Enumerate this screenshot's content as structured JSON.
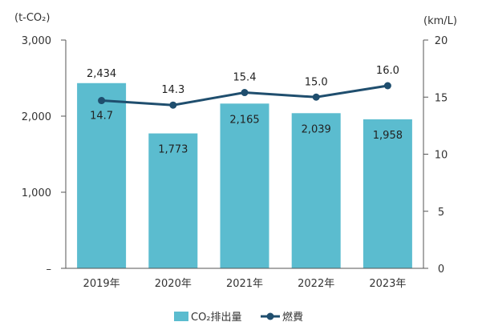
{
  "chart_data": {
    "type": "bar+line",
    "categories": [
      "2019年",
      "2020年",
      "2021年",
      "2022年",
      "2023年"
    ],
    "series": [
      {
        "name": "CO₂排出量",
        "type": "bar",
        "axis": "left",
        "values": [
          2434,
          1773,
          2165,
          2039,
          1958
        ],
        "labels": [
          "2,434",
          "1,773",
          "2,165",
          "2,039",
          "1,958"
        ],
        "color": "#5bbccf"
      },
      {
        "name": "燃費",
        "type": "line",
        "axis": "right",
        "values": [
          14.7,
          14.3,
          15.4,
          15.0,
          16.0
        ],
        "labels": [
          "14.7",
          "14.3",
          "15.4",
          "15.0",
          "16.0"
        ],
        "color": "#1f4e6e"
      }
    ],
    "y_left": {
      "unit": "(t-CO₂)",
      "ylim": [
        0,
        3000
      ],
      "ticks": [
        0,
        1000,
        2000,
        3000
      ],
      "tick_labels": [
        "–",
        "1,000",
        "2,000",
        "3,000"
      ]
    },
    "y_right": {
      "unit": "(km/L)",
      "ylim": [
        0,
        20
      ],
      "ticks": [
        0,
        5,
        10,
        15,
        20
      ],
      "tick_labels": [
        "0",
        "5",
        "10",
        "15",
        "20"
      ]
    },
    "grid": false,
    "legend": "bottom-center"
  }
}
